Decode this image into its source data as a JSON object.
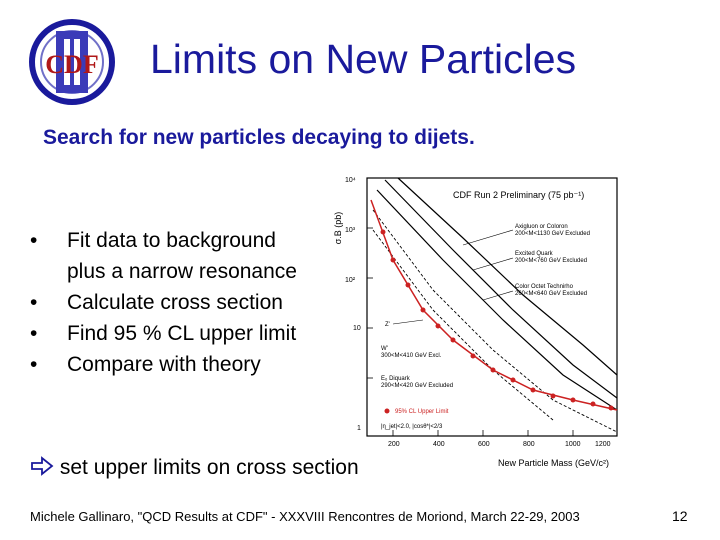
{
  "logo": {
    "text": "CDF",
    "numeral": "II"
  },
  "title": "Limits on New Particles",
  "subtitle": "Search for new particles decaying to dijets.",
  "bullets": {
    "marker": "•",
    "item1_line1": "Fit data to background",
    "item1_line2": "plus a narrow resonance",
    "item2": "Calculate cross section",
    "item3": "Find 95 % CL upper limit",
    "item4": "Compare with theory"
  },
  "conclusion": "set upper limits on cross section",
  "footer": "Michele Gallinaro, \"QCD Results at CDF\" - XXXVIII Rencontres de Moriond, March 22-29, 2003",
  "page_number": "12",
  "colors": {
    "title": "#1a1a9c",
    "limit": "#cc2222",
    "axes": "#000000"
  },
  "plot": {
    "ylabel": "σ.B (pb)",
    "xlabel": "New Particle Mass (GeV/c²)",
    "header": "CDF Run 2 Preliminary (75 pb⁻¹)",
    "y_ticks": [
      "10⁴",
      "10³",
      "10²",
      "10",
      "1"
    ],
    "x_ticks": [
      "200",
      "400",
      "600",
      "800",
      "1000",
      "1200"
    ],
    "legend": {
      "axigluon_1": "Axigluon or Coloron",
      "axigluon_2": "200<M<1130 GeV Excluded",
      "excited_1": "Excited Quark",
      "excited_2": "200<M<760 GeV Excluded",
      "color_1": "Color Octet Technirho",
      "color_2": "260<M<640 GeV Excluded",
      "zprime": "Z'",
      "wprime_1": "W'",
      "wprime_2": "300<M<410 GeV Excl.",
      "diquark_1": "E₆ Diquark",
      "diquark_2": "290<M<420 GeV Excluded",
      "limit_label": "95% CL Upper Limit",
      "cuts": "|η_jet|<2.0, |cosθ*|<2/3"
    }
  }
}
